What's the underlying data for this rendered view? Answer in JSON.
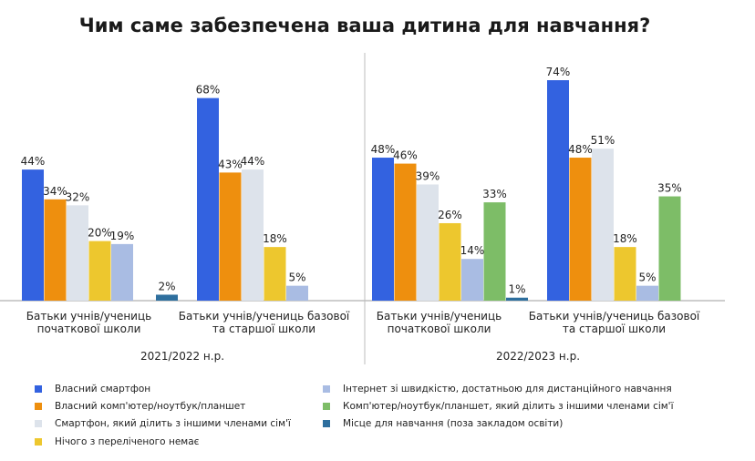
{
  "chart_data": {
    "type": "bar",
    "title": "Чим саме забезпечена ваша дитина для навчання?",
    "ylim": [
      0,
      80
    ],
    "grid": false,
    "legend_position": "bottom",
    "series": [
      {
        "name": "Власний смартфон",
        "color": "#3362E0"
      },
      {
        "name": "Власний комп'ютер/ноутбук/планшет",
        "color": "#EE8F0E"
      },
      {
        "name": "Смартфон, який ділить з іншими членами сім'ї",
        "color": "#DDE3EB"
      },
      {
        "name": "Нічого з переліченого немає",
        "color": "#EDC72E"
      },
      {
        "name": "Інтернет зі швидкістю, достатньою для дистанційного навчання",
        "color": "#A9BCE3"
      },
      {
        "name": "Комп'ютер/ноутбук/планшет, який ділить з іншими членами сім'ї",
        "color": "#7DBD67"
      },
      {
        "name": "Місце для навчання (поза закладом освіти)",
        "color": "#2E6F9E"
      }
    ],
    "periods": [
      {
        "label": "2021/2022 н.р.",
        "groups": [
          {
            "label": [
              "Батьки учнів/учениць",
              "початкової школи"
            ],
            "bars": [
              {
                "series": 0,
                "value": 44,
                "label": "44%"
              },
              {
                "series": 1,
                "value": 34,
                "label": "34%"
              },
              {
                "series": 2,
                "value": 32,
                "label": "32%"
              },
              {
                "series": 3,
                "value": 20,
                "label": "20%"
              },
              {
                "series": 4,
                "value": 19,
                "label": "19%"
              },
              {
                "series": 6,
                "value": 2,
                "label": "2%"
              }
            ]
          },
          {
            "label": [
              "Батьки учнів/учениць базової",
              "та старшої школи"
            ],
            "bars": [
              {
                "series": 0,
                "value": 68,
                "label": "68%"
              },
              {
                "series": 1,
                "value": 43,
                "label": "43%"
              },
              {
                "series": 2,
                "value": 44,
                "label": "44%"
              },
              {
                "series": 3,
                "value": 18,
                "label": "18%"
              },
              {
                "series": 4,
                "value": 5,
                "label": "5%"
              }
            ]
          }
        ]
      },
      {
        "label": "2022/2023 н.р.",
        "groups": [
          {
            "label": [
              "Батьки учнів/учениць",
              "початкової школи"
            ],
            "bars": [
              {
                "series": 0,
                "value": 48,
                "label": "48%"
              },
              {
                "series": 1,
                "value": 46,
                "label": "46%"
              },
              {
                "series": 2,
                "value": 39,
                "label": "39%"
              },
              {
                "series": 3,
                "value": 26,
                "label": "26%"
              },
              {
                "series": 4,
                "value": 14,
                "label": "14%"
              },
              {
                "series": 5,
                "value": 33,
                "label": "33%"
              },
              {
                "series": 6,
                "value": 1,
                "label": "1%"
              }
            ]
          },
          {
            "label": [
              "Батьки учнів/учениць базової",
              "та старшої школи"
            ],
            "bars": [
              {
                "series": 0,
                "value": 74,
                "label": "74%"
              },
              {
                "series": 1,
                "value": 48,
                "label": "48%"
              },
              {
                "series": 2,
                "value": 51,
                "label": "51%"
              },
              {
                "series": 3,
                "value": 18,
                "label": "18%"
              },
              {
                "series": 4,
                "value": 5,
                "label": "5%"
              },
              {
                "series": 5,
                "value": 35,
                "label": "35%"
              }
            ]
          }
        ]
      }
    ]
  }
}
